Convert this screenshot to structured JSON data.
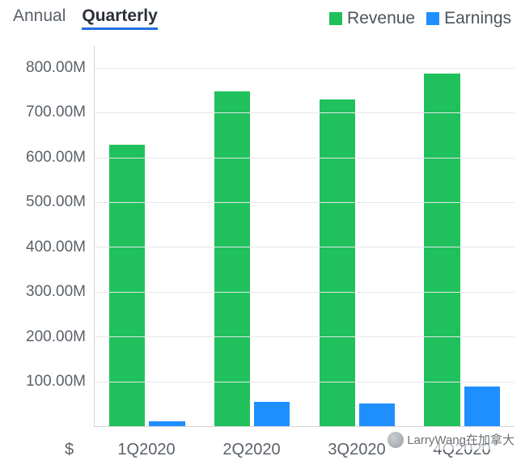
{
  "tabs": {
    "annual": "Annual",
    "quarterly": "Quarterly",
    "active": "quarterly"
  },
  "legend": {
    "revenue": {
      "label": "Revenue",
      "color": "#20c15c"
    },
    "earnings": {
      "label": "Earnings",
      "color": "#1f8fff"
    }
  },
  "chart": {
    "type": "bar",
    "currency_symbol": "$",
    "ylim": [
      0,
      850
    ],
    "yticks": [
      100,
      200,
      300,
      400,
      500,
      600,
      700,
      800
    ],
    "ytick_labels": [
      "100.00M",
      "200.00M",
      "300.00M",
      "400.00M",
      "500.00M",
      "600.00M",
      "700.00M",
      "800.00M"
    ],
    "categories": [
      "1Q2020",
      "2Q2020",
      "3Q2020",
      "4Q2020"
    ],
    "series": [
      {
        "key": "revenue",
        "color": "#20c15c",
        "values": [
          628,
          748,
          730,
          786
        ]
      },
      {
        "key": "earnings",
        "color": "#1f8fff",
        "values": [
          11,
          54,
          50,
          88
        ]
      }
    ],
    "bar_width_pct": 34,
    "bar_gap_pct": 4,
    "background_color": "#ffffff",
    "grid_color": "#e4e7ea",
    "axis_color": "#d0d4d9",
    "label_color": "#5b6168",
    "label_fontsize": 19
  },
  "watermark": {
    "text": "LarryWang在加拿大"
  }
}
